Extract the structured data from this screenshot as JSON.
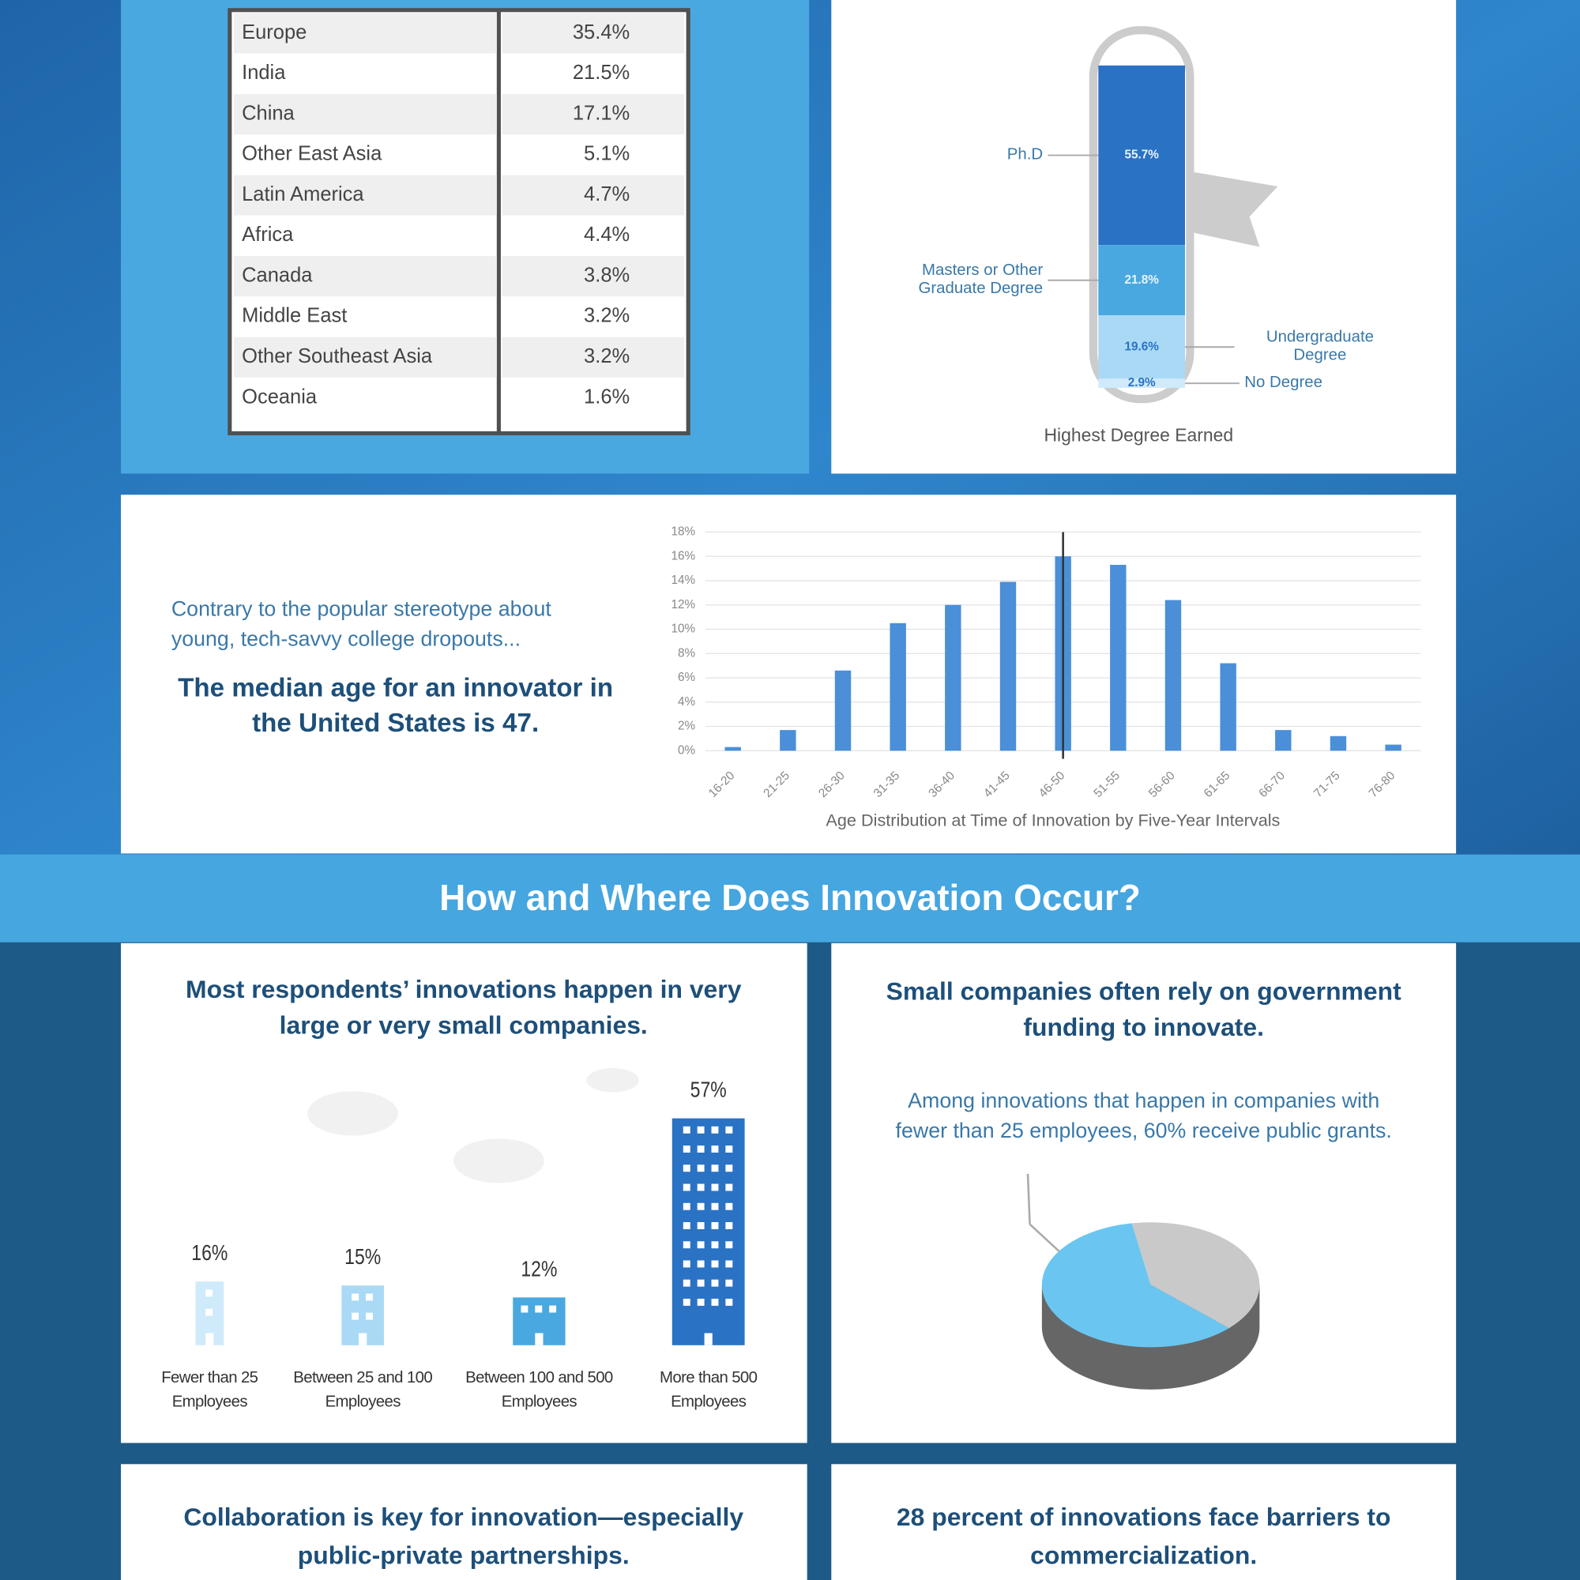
{
  "regions_table": {
    "rows": [
      [
        "Europe",
        "35.4%"
      ],
      [
        "India",
        "21.5%"
      ],
      [
        "China",
        "17.1%"
      ],
      [
        "Other East Asia",
        "5.1%"
      ],
      [
        "Latin America",
        "4.7%"
      ],
      [
        "Africa",
        "4.4%"
      ],
      [
        "Canada",
        "3.8%"
      ],
      [
        "Middle East",
        "3.2%"
      ],
      [
        "Other Southeast Asia",
        "3.2%"
      ],
      [
        "Oceania",
        "1.6%"
      ]
    ]
  },
  "age_section": {
    "intro": "Contrary to the popular stereotype about young, tech-savvy college dropouts...",
    "highlight": "The median age for an innovator in the United States is 47."
  },
  "banner": "How and Where Does Innovation Occur?",
  "bottom": [
    "Collaboration is key for innovation—especially public-private partnerships.",
    "28 percent of innovations face barriers to commercialization."
  ],
  "chart_data": [
    {
      "type": "stacked_column",
      "title": "Highest Degree Earned",
      "series": [
        {
          "name": "Ph.D",
          "color": "#2a72c4",
          "values": [
            55.7
          ],
          "value_labels": [
            "55.7%"
          ]
        },
        {
          "name": "Masters or Other Graduate Degree",
          "color": "#4aa8e0",
          "values": [
            21.8
          ],
          "value_labels": [
            "21.8%"
          ]
        },
        {
          "name": "Undergraduate Degree",
          "color": "#a9d9f5",
          "values": [
            19.6
          ],
          "value_labels": [
            "19.6%"
          ]
        },
        {
          "name": "No Degree",
          "color": "#cfeafb",
          "values": [
            2.9
          ],
          "value_labels": [
            "2.9%"
          ]
        }
      ]
    },
    {
      "type": "bar",
      "xlabel": "Age Distribution at Time of Innovation by Five-Year Intervals",
      "categories": [
        "16-20",
        "21-25",
        "26-30",
        "31-35",
        "36-40",
        "41-45",
        "46-50",
        "51-55",
        "56-60",
        "61-65",
        "66-70",
        "71-75",
        "76-80"
      ],
      "values": [
        0.3,
        1.7,
        6.6,
        10.5,
        12,
        13.9,
        16,
        15.3,
        12.4,
        7.2,
        1.7,
        1.2,
        0.5
      ],
      "color": "#4a8fd8",
      "ylim": [
        0,
        18
      ],
      "yticks": [
        {
          "value": 0,
          "label": "0%"
        },
        {
          "value": 2,
          "label": "2%"
        },
        {
          "value": 4,
          "label": "4%"
        },
        {
          "value": 6,
          "label": "6%"
        },
        {
          "value": 8,
          "label": "8%"
        },
        {
          "value": 10,
          "label": "10%"
        },
        {
          "value": 12,
          "label": "12%"
        },
        {
          "value": 14,
          "label": "14%"
        },
        {
          "value": 16,
          "label": "16%"
        },
        {
          "value": 18,
          "label": "18%"
        }
      ],
      "grid": true
    },
    {
      "type": "building_bar",
      "title": "Most respondents’ innovations happen in very large or very small companies.",
      "categories": [
        "Fewer than 25 Employees",
        "Between 25 and 100 Employees",
        "Between 100 and 500 Employees",
        "More than 500 Employees"
      ],
      "values": [
        16,
        15,
        12,
        57
      ],
      "value_labels": [
        "16%",
        "15%",
        "12%",
        "57%"
      ],
      "colors": [
        "#cfeafb",
        "#a9d9f5",
        "#4aa8e0",
        "#2a72c4"
      ]
    },
    {
      "type": "pie",
      "title": "Small companies often rely on government funding to innovate.",
      "subtitle": "Among innovations that happen in companies with fewer than 25 employees, 60% receive public grants.",
      "values": [
        60,
        40
      ],
      "colors": [
        "#6ac6f0",
        "#c9c9c9"
      ]
    }
  ]
}
